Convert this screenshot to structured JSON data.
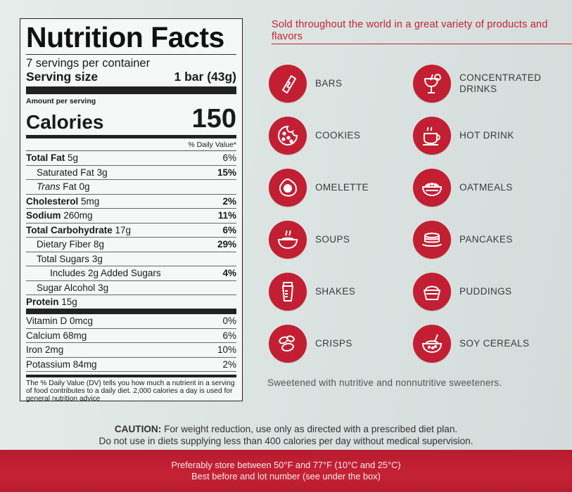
{
  "nutrition": {
    "title": "Nutrition Facts",
    "servings": "7 servings per container",
    "serving_size_label": "Serving size",
    "serving_size_value": "1 bar (43g)",
    "amount_per_serving": "Amount per serving",
    "calories_label": "Calories",
    "calories_value": "150",
    "dv_header": "% Daily Value*",
    "rows": [
      {
        "label": "Total Fat",
        "amount": "5g",
        "pct": "6%"
      },
      {
        "label": "Saturated Fat",
        "amount": "3g",
        "pct": "15%"
      },
      {
        "label": "Trans",
        "amount": "Fat 0g",
        "pct": ""
      },
      {
        "label": "Cholesterol",
        "amount": "5mg",
        "pct": "2%"
      },
      {
        "label": "Sodium",
        "amount": "260mg",
        "pct": "11%"
      },
      {
        "label": "Total Carbohydrate",
        "amount": "17g",
        "pct": "6%"
      },
      {
        "label": "Dietary Fiber",
        "amount": "8g",
        "pct": "29%"
      },
      {
        "label": "Total Sugars",
        "amount": "3g",
        "pct": ""
      },
      {
        "label": "Includes 2g Added Sugars",
        "amount": "",
        "pct": "4%"
      },
      {
        "label": "Sugar Alcohol",
        "amount": "3g",
        "pct": ""
      },
      {
        "label": "Protein",
        "amount": "15g",
        "pct": ""
      },
      {
        "label": "Vitamin D",
        "amount": "0mcg",
        "pct": "0%"
      },
      {
        "label": "Calcium",
        "amount": "68mg",
        "pct": "6%"
      },
      {
        "label": "Iron",
        "amount": "2mg",
        "pct": "10%"
      },
      {
        "label": "Potassium",
        "amount": "84mg",
        "pct": "2%"
      }
    ],
    "footnote": "The % Daily Value (DV) tells you how much a nutrient in a serving of food contributes to a daily diet. 2,000 calories a day is used for general nutrition advice"
  },
  "tagline": "Sold throughout the world in a great variety of products and flavors",
  "products": [
    {
      "label": "BARS",
      "icon": "bar-icon"
    },
    {
      "label": "CONCENTRATED DRINKS",
      "icon": "cocktail-icon"
    },
    {
      "label": "COOKIES",
      "icon": "cookie-icon"
    },
    {
      "label": "HOT DRINK",
      "icon": "hot-cup-icon"
    },
    {
      "label": "OMELETTE",
      "icon": "fried-egg-icon"
    },
    {
      "label": "OATMEALS",
      "icon": "oatmeal-bowl-icon"
    },
    {
      "label": "SOUPS",
      "icon": "soup-bowl-icon"
    },
    {
      "label": "PANCAKES",
      "icon": "pancake-stack-icon"
    },
    {
      "label": "SHAKES",
      "icon": "shaker-icon"
    },
    {
      "label": "PUDDINGS",
      "icon": "pudding-icon"
    },
    {
      "label": "CRISPS",
      "icon": "crisps-icon"
    },
    {
      "label": "SOY CEREALS",
      "icon": "cereal-bowl-icon"
    }
  ],
  "sweetener_note": "Sweetened with nutritive and nonnutritive sweeteners.",
  "caution": {
    "label": "CAUTION:",
    "line1": "For weight reduction, use only as directed with a prescribed diet plan.",
    "line2": "Do not use in diets supplying less than 400 calories per day without medical supervision."
  },
  "storage": {
    "line1": "Preferably store between 50°F and 77°F (10°C and 25°C)",
    "line2": "Best before and lot number (see under the box)"
  },
  "colors": {
    "accent": "#c21f33",
    "label_text": "#3a3a3a"
  }
}
